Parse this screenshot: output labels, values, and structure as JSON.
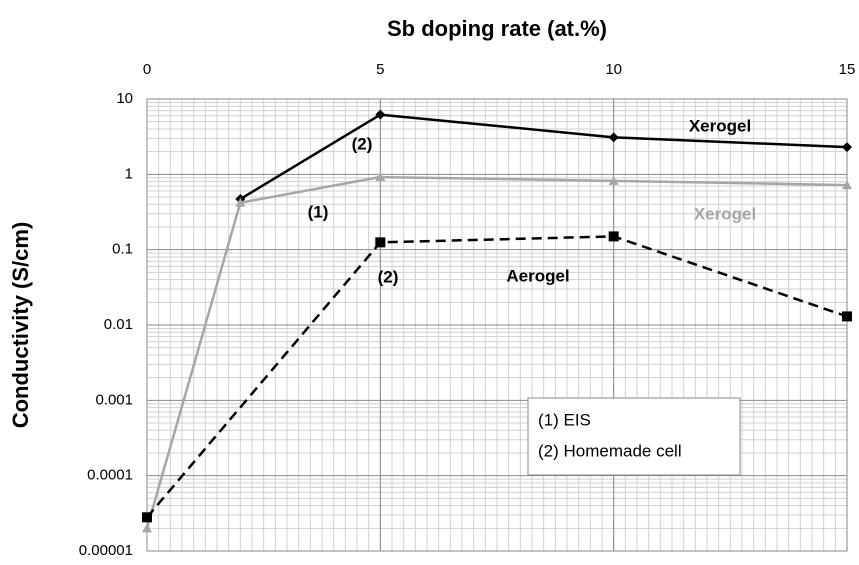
{
  "chart_data": {
    "type": "line",
    "xlabel": "Sb doping rate (at.%)",
    "ylabel": "Conductivity (S/cm)",
    "xlim": [
      0,
      15
    ],
    "xticks": [
      0,
      5,
      10,
      15
    ],
    "ylim": [
      1e-05,
      10
    ],
    "yticks": [
      1e-05,
      0.0001,
      0.001,
      0.01,
      0.1,
      1,
      10
    ],
    "log_y": true,
    "grid": true,
    "minor_grid": true,
    "series": [
      {
        "name": "Xerogel",
        "color": "#000000",
        "marker": "diamond",
        "dash": false,
        "x": [
          2,
          5,
          10,
          15
        ],
        "values": [
          0.47,
          6.2,
          3.1,
          2.3
        ]
      },
      {
        "name": "Xerogel",
        "color": "#a6a6a6",
        "marker": "triangle",
        "dash": false,
        "x": [
          0,
          2,
          5,
          10,
          15
        ],
        "values": [
          2e-05,
          0.42,
          0.92,
          0.82,
          0.72
        ]
      },
      {
        "name": "Aerogel",
        "color": "#000000",
        "marker": "square",
        "dash": true,
        "x": [
          0,
          5,
          10,
          15
        ],
        "values": [
          2.8e-05,
          0.125,
          0.15,
          0.013
        ]
      }
    ],
    "annotations": [
      "(2)",
      "(1)",
      "(2)"
    ],
    "legend_box": [
      "(1) EIS",
      "(2) Homemade cell"
    ]
  }
}
